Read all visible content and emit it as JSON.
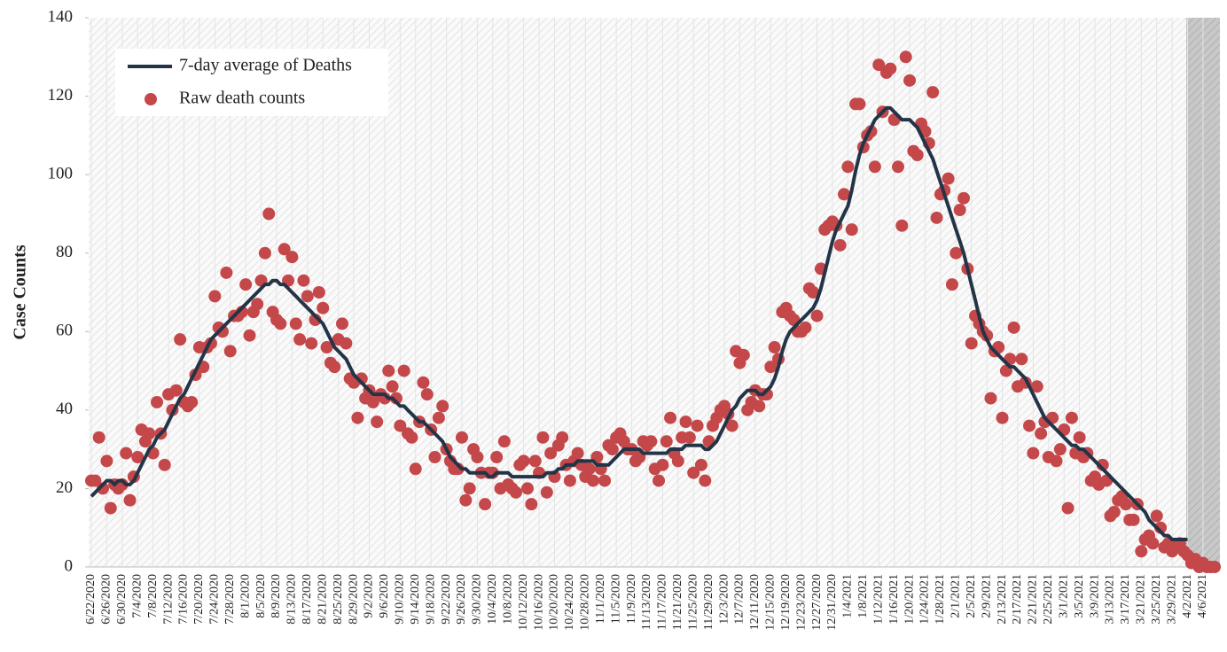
{
  "chart_data": {
    "type": "line",
    "y_label": "Case Counts",
    "categories": [
      "6/22/2020",
      null,
      null,
      null,
      "6/26/2020",
      null,
      null,
      null,
      "6/30/2020",
      null,
      null,
      null,
      "7/4/2020",
      null,
      null,
      null,
      "7/8/2020",
      null,
      null,
      null,
      "7/12/2020",
      null,
      null,
      null,
      "7/16/2020",
      null,
      null,
      null,
      "7/20/2020",
      null,
      null,
      null,
      "7/24/2020",
      null,
      null,
      null,
      "7/28/2020",
      null,
      null,
      null,
      "8/1/2020",
      null,
      null,
      null,
      "8/5/2020",
      null,
      null,
      null,
      "8/9/2020",
      null,
      null,
      null,
      "8/13/2020",
      null,
      null,
      null,
      "8/17/2020",
      null,
      null,
      null,
      "8/21/2020",
      null,
      null,
      null,
      "8/25/2020",
      null,
      null,
      null,
      "8/29/2020",
      null,
      null,
      null,
      "9/2/2020",
      null,
      null,
      null,
      "9/6/2020",
      null,
      null,
      null,
      "9/10/2020",
      null,
      null,
      null,
      "9/14/2020",
      null,
      null,
      null,
      "9/18/2020",
      null,
      null,
      null,
      "9/22/2020",
      null,
      null,
      null,
      "9/26/2020",
      null,
      null,
      null,
      "9/30/2020",
      null,
      null,
      null,
      "10/4/2020",
      null,
      null,
      null,
      "10/8/2020",
      null,
      null,
      null,
      "10/12/2020",
      null,
      null,
      null,
      "10/16/2020",
      null,
      null,
      null,
      "10/20/2020",
      null,
      null,
      null,
      "10/24/2020",
      null,
      null,
      null,
      "10/28/2020",
      null,
      null,
      null,
      "11/1/2020",
      null,
      null,
      null,
      "11/5/2020",
      null,
      null,
      null,
      "11/9/2020",
      null,
      null,
      null,
      "11/13/2020",
      null,
      null,
      null,
      "11/17/2020",
      null,
      null,
      null,
      "11/21/2020",
      null,
      null,
      null,
      "11/25/2020",
      null,
      null,
      null,
      "11/29/2020",
      null,
      null,
      null,
      "12/3/2020",
      null,
      null,
      null,
      "12/7/2020",
      null,
      null,
      null,
      "12/11/2020",
      null,
      null,
      null,
      "12/15/2020",
      null,
      null,
      null,
      "12/19/2020",
      null,
      null,
      null,
      "12/23/2020",
      null,
      null,
      null,
      "12/27/2020",
      null,
      null,
      null,
      "12/31/2020",
      null,
      null,
      null,
      "1/4/2021",
      null,
      null,
      null,
      "1/8/2021",
      null,
      null,
      null,
      "1/12/2021",
      null,
      null,
      null,
      "1/16/2021",
      null,
      null,
      null,
      "1/20/2021",
      null,
      null,
      null,
      "1/24/2021",
      null,
      null,
      null,
      "1/28/2021",
      null,
      null,
      null,
      "2/1/2021",
      null,
      null,
      null,
      "2/5/2021",
      null,
      null,
      null,
      "2/9/2021",
      null,
      null,
      null,
      "2/13/2021",
      null,
      null,
      null,
      "2/17/2021",
      null,
      null,
      null,
      "2/21/2021",
      null,
      null,
      null,
      "2/25/2021",
      null,
      null,
      null,
      "3/1/2021",
      null,
      null,
      null,
      "3/5/2021",
      null,
      null,
      null,
      "3/9/2021",
      null,
      null,
      null,
      "3/13/2021",
      null,
      null,
      null,
      "3/17/2021",
      null,
      null,
      null,
      "3/21/2021",
      null,
      null,
      null,
      "3/25/2021",
      null,
      null,
      null,
      "3/29/2021",
      null,
      null,
      null,
      "4/2/2021",
      null,
      null,
      null,
      "4/6/2021",
      null,
      null,
      null
    ],
    "series": [
      {
        "name": "7-day average of Deaths",
        "kind": "line",
        "color": "#243447",
        "values": [
          18,
          19,
          20,
          21,
          22,
          22,
          21,
          22,
          22,
          21,
          21,
          22,
          24,
          26,
          28,
          30,
          31,
          33,
          34,
          35,
          37,
          39,
          41,
          43,
          44,
          46,
          48,
          50,
          52,
          54,
          56,
          58,
          59,
          60,
          61,
          62,
          63,
          64,
          65,
          66,
          67,
          68,
          69,
          70,
          71,
          72,
          72,
          73,
          73,
          72,
          72,
          71,
          70,
          69,
          68,
          67,
          66,
          65,
          64,
          63,
          62,
          60,
          58,
          56,
          55,
          54,
          53,
          51,
          49,
          48,
          47,
          46,
          45,
          44,
          44,
          44,
          44,
          43,
          43,
          42,
          41,
          41,
          40,
          39,
          38,
          37,
          37,
          36,
          35,
          34,
          33,
          32,
          30,
          28,
          27,
          26,
          25,
          25,
          24,
          24,
          24,
          24,
          24,
          23,
          23,
          24,
          24,
          24,
          24,
          23,
          23,
          23,
          23,
          23,
          23,
          23,
          23,
          23,
          24,
          24,
          24,
          25,
          25,
          26,
          26,
          26,
          27,
          27,
          27,
          27,
          27,
          26,
          26,
          26,
          26,
          27,
          28,
          29,
          30,
          30,
          30,
          30,
          30,
          29,
          29,
          29,
          29,
          29,
          29,
          29,
          30,
          30,
          30,
          30,
          31,
          31,
          31,
          31,
          31,
          30,
          30,
          31,
          32,
          34,
          36,
          38,
          40,
          41,
          43,
          44,
          45,
          45,
          45,
          44,
          44,
          45,
          46,
          48,
          51,
          55,
          58,
          60,
          61,
          62,
          63,
          64,
          65,
          66,
          68,
          71,
          75,
          79,
          83,
          86,
          88,
          90,
          92,
          96,
          101,
          105,
          108,
          110,
          112,
          114,
          115,
          116,
          117,
          117,
          116,
          115,
          114,
          114,
          114,
          113,
          112,
          110,
          108,
          106,
          104,
          101,
          98,
          95,
          92,
          89,
          86,
          83,
          80,
          76,
          72,
          68,
          64,
          60,
          58,
          56,
          55,
          54,
          53,
          52,
          51,
          51,
          50,
          49,
          48,
          46,
          44,
          42,
          40,
          38,
          37,
          36,
          35,
          34,
          33,
          32,
          31,
          31,
          30,
          30,
          29,
          28,
          27,
          26,
          25,
          24,
          23,
          22,
          21,
          20,
          19,
          18,
          17,
          16,
          15,
          14,
          12,
          11,
          10,
          9,
          8,
          8,
          7,
          7,
          7,
          7,
          7,
          null,
          null,
          null,
          null,
          null,
          null,
          null
        ]
      },
      {
        "name": "Raw death counts",
        "kind": "scatter",
        "color": "#c4474a",
        "values": [
          22,
          22,
          33,
          20,
          27,
          15,
          21,
          20,
          21,
          29,
          17,
          23,
          28,
          35,
          32,
          34,
          29,
          42,
          34,
          26,
          44,
          40,
          45,
          58,
          42,
          41,
          42,
          49,
          56,
          51,
          56,
          57,
          69,
          61,
          60,
          75,
          55,
          64,
          64,
          65,
          72,
          59,
          65,
          67,
          73,
          80,
          90,
          65,
          63,
          62,
          81,
          73,
          79,
          62,
          58,
          73,
          69,
          57,
          63,
          70,
          66,
          56,
          52,
          51,
          58,
          62,
          57,
          48,
          47,
          38,
          48,
          43,
          45,
          42,
          37,
          44,
          43,
          50,
          46,
          43,
          36,
          50,
          34,
          33,
          25,
          37,
          47,
          44,
          35,
          28,
          38,
          41,
          30,
          27,
          25,
          25,
          33,
          17,
          20,
          30,
          28,
          24,
          16,
          24,
          24,
          28,
          20,
          32,
          21,
          20,
          19,
          26,
          27,
          20,
          16,
          27,
          24,
          33,
          19,
          29,
          23,
          31,
          33,
          26,
          22,
          27,
          29,
          26,
          23,
          25,
          22,
          28,
          25,
          22,
          31,
          30,
          33,
          34,
          32,
          30,
          30,
          27,
          28,
          32,
          31,
          32,
          25,
          22,
          26,
          32,
          38,
          29,
          27,
          33,
          37,
          33,
          24,
          36,
          26,
          22,
          32,
          36,
          38,
          40,
          41,
          39,
          36,
          55,
          52,
          54,
          40,
          42,
          45,
          41,
          44,
          44,
          51,
          56,
          53,
          65,
          66,
          64,
          63,
          60,
          60,
          61,
          71,
          70,
          64,
          76,
          86,
          87,
          88,
          87,
          82,
          95,
          102,
          86,
          118,
          118,
          107,
          110,
          111,
          102,
          128,
          116,
          126,
          127,
          114,
          102,
          87,
          130,
          124,
          106,
          105,
          113,
          111,
          108,
          121,
          89,
          95,
          96,
          99,
          72,
          80,
          91,
          94,
          76,
          57,
          64,
          62,
          60,
          59,
          43,
          55,
          56,
          38,
          50,
          53,
          61,
          46,
          53,
          47,
          36,
          29,
          46,
          34,
          37,
          28,
          38,
          27,
          30,
          35,
          15,
          38,
          29,
          33,
          28,
          29,
          22,
          23,
          21,
          26,
          22,
          13,
          14,
          17,
          18,
          16,
          12,
          12,
          16,
          4,
          7,
          8,
          6,
          13,
          10,
          5,
          6,
          4,
          5,
          6,
          4,
          3,
          1,
          2,
          0,
          1,
          0,
          0,
          0
        ]
      }
    ],
    "ylim": [
      0,
      140
    ],
    "yticks": [
      0,
      20,
      40,
      60,
      80,
      100,
      120,
      140
    ],
    "grid": false,
    "legend": "upper left"
  }
}
